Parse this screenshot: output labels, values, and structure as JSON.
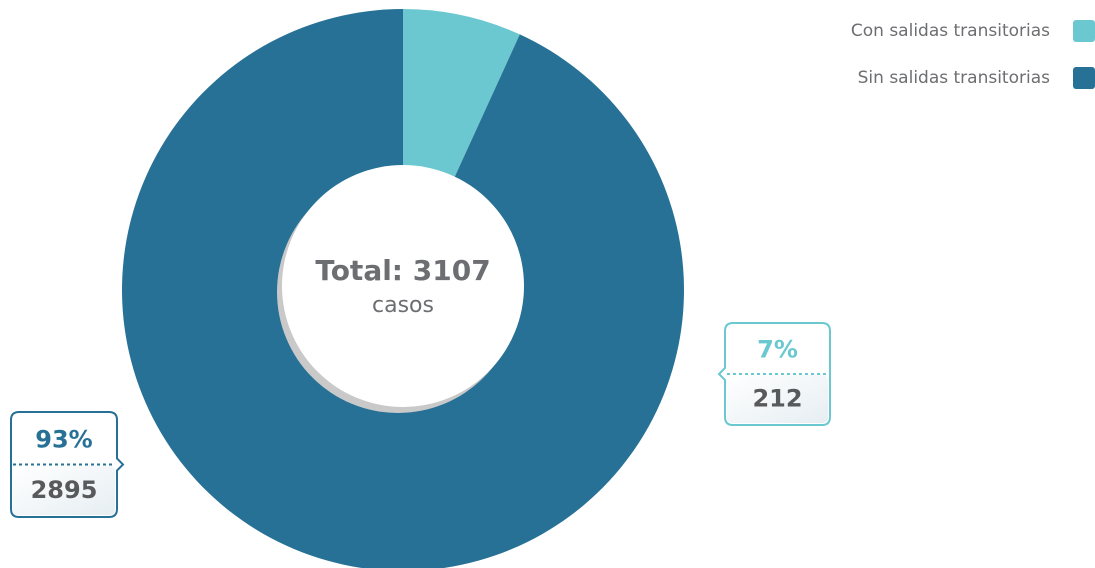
{
  "chart_data": {
    "type": "donut",
    "center_label": "Total: 3107",
    "center_sublabel": "casos",
    "series": [
      {
        "name": "Con salidas transitorias",
        "color": "#6bc8d0",
        "values": [
          212
        ],
        "value_labels": [
          "7%"
        ]
      },
      {
        "name": "Sin salidas transitorias",
        "color": "#277196",
        "values": [
          2895
        ],
        "value_labels": [
          "93%"
        ]
      }
    ],
    "legend": "top-right"
  }
}
